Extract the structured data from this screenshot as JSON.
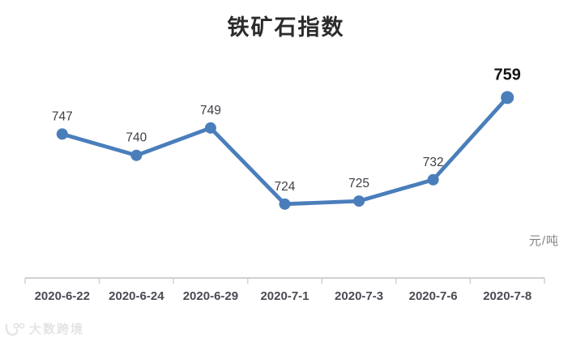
{
  "chart_data": {
    "type": "line",
    "title": "铁矿石指数",
    "categories": [
      "2020-6-22",
      "2020-6-24",
      "2020-6-29",
      "2020-7-1",
      "2020-7-3",
      "2020-7-6",
      "2020-7-8"
    ],
    "series": [
      {
        "name": "铁矿石指数",
        "values": [
          747,
          740,
          749,
          724,
          725,
          732,
          759
        ]
      }
    ],
    "unit": "元/吨",
    "xlabel": "",
    "ylabel": "",
    "ylim": [
      700,
      770
    ],
    "grid": false,
    "legend": "none",
    "data_labels": true,
    "last_point_emphasis": true,
    "marker": "circle"
  },
  "colors": {
    "line": "#4a7ebb",
    "axis": "#d1d0d0",
    "data_label": "#3f3f46",
    "last_data_label": "#141414",
    "x_label": "#4a4b53",
    "unit_label": "#848484",
    "title": "#2b2b2b",
    "watermark": "#e4e4e4",
    "background": "#ffffff"
  },
  "watermark": {
    "text": "大数跨境"
  }
}
